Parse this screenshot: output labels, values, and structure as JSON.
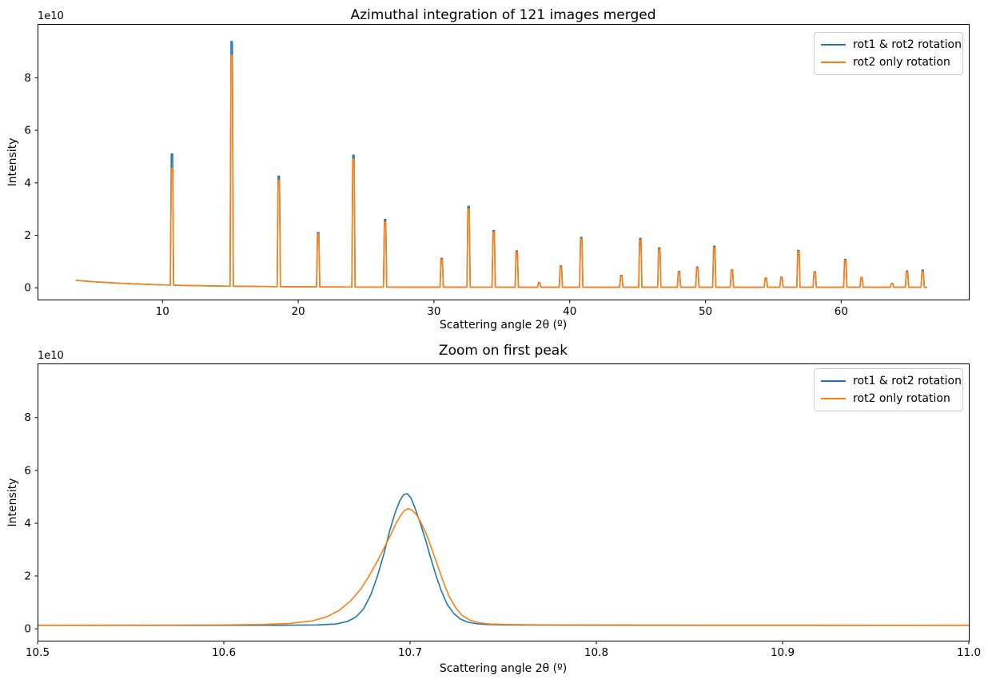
{
  "figure": {
    "background_color": "#ffffff"
  },
  "chart_data": [
    {
      "type": "line",
      "title": "Azimuthal integration of 121 images merged",
      "xlabel": "Scattering angle 2θ (º)",
      "ylabel": "Intensity",
      "y_offset_text": "1e10",
      "y_units": "1e10",
      "xlim": [
        0.8,
        69.4
      ],
      "ylim_1e10": [
        -0.45,
        10.05
      ],
      "xticks": [
        10,
        20,
        30,
        40,
        50,
        60
      ],
      "xtick_labels": [
        "10",
        "20",
        "30",
        "40",
        "50",
        "60"
      ],
      "yticks_1e10": [
        0,
        2,
        4,
        6,
        8
      ],
      "ytick_labels": [
        "0",
        "2",
        "4",
        "6",
        "8"
      ],
      "grid": false,
      "legend_position": "upper right",
      "series": [
        {
          "name": "rot1 & rot2 rotation",
          "color": "#1f77b4"
        },
        {
          "name": "rot2 only rotation",
          "color": "#ff7f0e"
        }
      ],
      "background_curve": {
        "x_start_deg": 3.65,
        "x_end_deg": 66.3,
        "base_1e10": 0.02,
        "amplitude_1e10": 0.26,
        "decay_deg": 6.0
      },
      "peaks": {
        "positions_deg": [
          10.7,
          15.1,
          18.57,
          21.47,
          24.07,
          26.4,
          30.57,
          32.55,
          34.4,
          36.1,
          37.75,
          39.35,
          40.85,
          43.8,
          45.2,
          46.6,
          48.05,
          49.4,
          50.65,
          51.95,
          54.45,
          55.6,
          56.85,
          58.05,
          60.3,
          61.5,
          63.75,
          64.85,
          66.0
        ],
        "rot1_rot2_heights_1e10": [
          5.1,
          9.38,
          4.25,
          2.1,
          5.05,
          2.6,
          1.12,
          3.1,
          2.18,
          1.4,
          0.2,
          0.83,
          1.92,
          0.47,
          1.88,
          1.52,
          0.62,
          0.79,
          1.58,
          0.68,
          0.37,
          0.4,
          1.42,
          0.61,
          1.08,
          0.39,
          0.17,
          0.64,
          0.67
        ],
        "rot2_only_heights_1e10": [
          4.55,
          8.85,
          4.1,
          2.04,
          4.9,
          2.52,
          1.08,
          3.0,
          2.12,
          1.36,
          0.19,
          0.8,
          1.86,
          0.45,
          1.82,
          1.47,
          0.6,
          0.76,
          1.53,
          0.66,
          0.36,
          0.38,
          1.38,
          0.59,
          1.04,
          0.38,
          0.16,
          0.61,
          0.62
        ]
      }
    },
    {
      "type": "line",
      "title": "Zoom on first peak",
      "xlabel": "Scattering angle 2θ (º)",
      "ylabel": "Intensity",
      "y_offset_text": "1e10",
      "y_units": "1e10",
      "xlim": [
        10.5,
        11.0
      ],
      "ylim_1e10": [
        -0.45,
        10.05
      ],
      "xticks": [
        10.5,
        10.6,
        10.7,
        10.8,
        10.9,
        11.0
      ],
      "xtick_labels": [
        "10.5",
        "10.6",
        "10.7",
        "10.8",
        "10.9",
        "11.0"
      ],
      "yticks_1e10": [
        0,
        2,
        4,
        6,
        8
      ],
      "ytick_labels": [
        "0",
        "2",
        "4",
        "6",
        "8"
      ],
      "grid": false,
      "legend_position": "upper right",
      "series": [
        {
          "name": "rot1 & rot2 rotation",
          "color": "#1f77b4",
          "points": [
            [
              10.5,
              0.13
            ],
            [
              10.56,
              0.13
            ],
            [
              10.6,
              0.13
            ],
            [
              10.63,
              0.135
            ],
            [
              10.65,
              0.145
            ],
            [
              10.66,
              0.18
            ],
            [
              10.6665,
              0.28
            ],
            [
              10.671,
              0.45
            ],
            [
              10.675,
              0.75
            ],
            [
              10.679,
              1.3
            ],
            [
              10.6825,
              2.0
            ],
            [
              10.686,
              2.85
            ],
            [
              10.689,
              3.7
            ],
            [
              10.692,
              4.4
            ],
            [
              10.6945,
              4.85
            ],
            [
              10.6965,
              5.08
            ],
            [
              10.6985,
              5.12
            ],
            [
              10.7005,
              4.95
            ],
            [
              10.7025,
              4.6
            ],
            [
              10.705,
              4.1
            ],
            [
              10.708,
              3.45
            ],
            [
              10.711,
              2.7
            ],
            [
              10.714,
              2.0
            ],
            [
              10.717,
              1.4
            ],
            [
              10.72,
              0.92
            ],
            [
              10.7235,
              0.58
            ],
            [
              10.727,
              0.37
            ],
            [
              10.731,
              0.25
            ],
            [
              10.736,
              0.19
            ],
            [
              10.742,
              0.16
            ],
            [
              10.75,
              0.145
            ],
            [
              10.76,
              0.14
            ],
            [
              10.8,
              0.135
            ],
            [
              10.9,
              0.13
            ],
            [
              11.0,
              0.13
            ]
          ]
        },
        {
          "name": "rot2 only rotation",
          "color": "#ff7f0e",
          "points": [
            [
              10.5,
              0.135
            ],
            [
              10.56,
              0.14
            ],
            [
              10.6,
              0.145
            ],
            [
              10.62,
              0.16
            ],
            [
              10.635,
              0.2
            ],
            [
              10.6475,
              0.3
            ],
            [
              10.6555,
              0.46
            ],
            [
              10.662,
              0.7
            ],
            [
              10.668,
              1.05
            ],
            [
              10.6735,
              1.5
            ],
            [
              10.678,
              2.0
            ],
            [
              10.682,
              2.5
            ],
            [
              10.686,
              3.05
            ],
            [
              10.6895,
              3.55
            ],
            [
              10.6925,
              4.0
            ],
            [
              10.695,
              4.3
            ],
            [
              10.697,
              4.48
            ],
            [
              10.699,
              4.55
            ],
            [
              10.701,
              4.5
            ],
            [
              10.7035,
              4.32
            ],
            [
              10.706,
              4.0
            ],
            [
              10.709,
              3.55
            ],
            [
              10.712,
              2.95
            ],
            [
              10.715,
              2.35
            ],
            [
              10.718,
              1.75
            ],
            [
              10.721,
              1.22
            ],
            [
              10.7245,
              0.8
            ],
            [
              10.728,
              0.5
            ],
            [
              10.732,
              0.33
            ],
            [
              10.737,
              0.23
            ],
            [
              10.743,
              0.18
            ],
            [
              10.752,
              0.16
            ],
            [
              10.77,
              0.15
            ],
            [
              10.85,
              0.14
            ],
            [
              11.0,
              0.135
            ]
          ]
        }
      ]
    }
  ]
}
